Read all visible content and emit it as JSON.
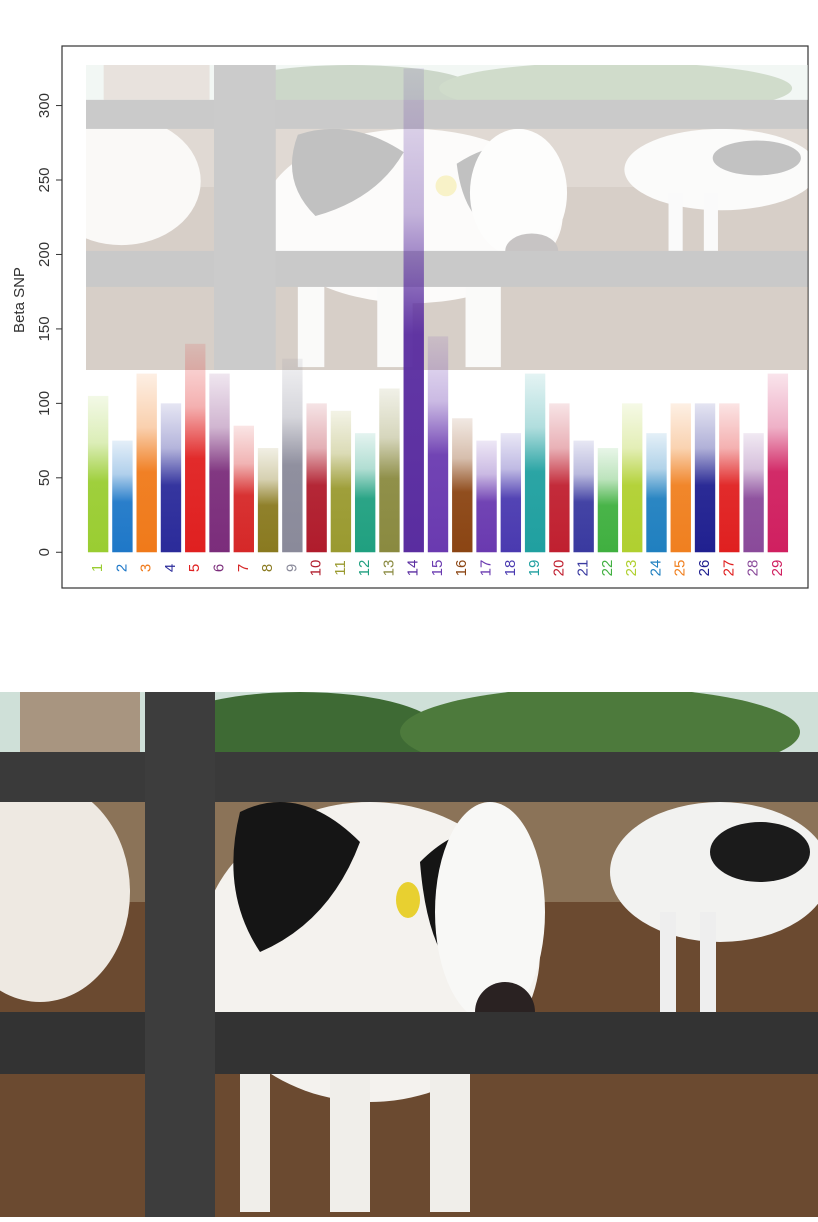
{
  "chart_data": {
    "type": "manhattan",
    "y_label": "Beta SNP",
    "categories": [
      "1",
      "2",
      "3",
      "4",
      "5",
      "6",
      "7",
      "8",
      "9",
      "10",
      "11",
      "12",
      "13",
      "14",
      "15",
      "16",
      "17",
      "18",
      "19",
      "20",
      "21",
      "22",
      "23",
      "24",
      "25",
      "26",
      "27",
      "28",
      "29"
    ],
    "values": [
      105,
      75,
      120,
      100,
      140,
      120,
      85,
      70,
      130,
      100,
      95,
      80,
      110,
      325,
      145,
      90,
      75,
      80,
      120,
      100,
      75,
      70,
      100,
      80,
      100,
      100,
      100,
      80,
      120
    ],
    "colors": [
      "#9acd32",
      "#1f78c8",
      "#f07a1a",
      "#2b2b9a",
      "#e02020",
      "#7b2d7b",
      "#d62828",
      "#8a7a20",
      "#8a8a9a",
      "#b01c2c",
      "#9a9a30",
      "#20a080",
      "#8a8a40",
      "#5a2da0",
      "#6a3ab0",
      "#8b4513",
      "#6a3ab0",
      "#4a3ab0",
      "#20a0a0",
      "#c02030",
      "#3a3aa0",
      "#40b040",
      "#b0d030",
      "#2080c0",
      "#f08020",
      "#202090",
      "#e02020",
      "#8a4a9a",
      "#d02060"
    ],
    "ylim": [
      -24,
      340
    ],
    "yticks": [
      0,
      50,
      100,
      150,
      200,
      250,
      300
    ]
  }
}
